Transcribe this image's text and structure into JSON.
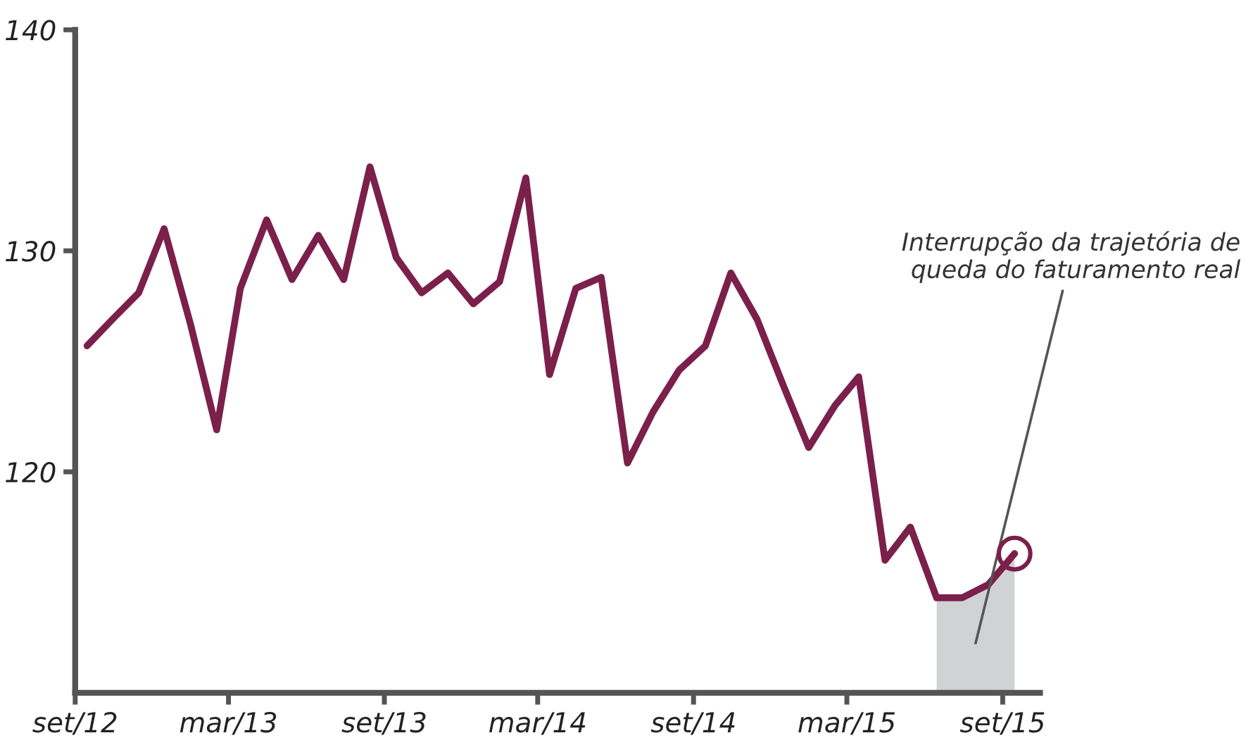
{
  "chart_data": {
    "type": "line",
    "x": [
      "2012-09-15",
      "2012-10-15",
      "2012-11-15",
      "2012-12-15",
      "2013-01-15",
      "2013-02-15",
      "2013-03-15",
      "2013-04-15",
      "2013-05-15",
      "2013-06-15",
      "2013-07-15",
      "2013-08-15",
      "2013-09-15",
      "2013-10-15",
      "2013-11-15",
      "2013-12-15",
      "2014-01-15",
      "2014-02-15",
      "2014-03-15",
      "2014-04-15",
      "2014-05-15",
      "2014-06-15",
      "2014-07-15",
      "2014-08-15",
      "2014-09-15",
      "2014-10-15",
      "2014-11-15",
      "2014-12-15",
      "2015-01-15",
      "2015-02-15",
      "2015-03-15",
      "2015-04-15",
      "2015-05-15",
      "2015-06-15",
      "2015-07-15",
      "2015-08-15",
      "2015-09-15"
    ],
    "series": [
      {
        "type": "area",
        "color": "#d1d2d4",
        "x": [
          "2015-06-15",
          "2015-07-15",
          "2015-08-15",
          "2015-09-15"
        ],
        "values": [
          114.3,
          114.3,
          114.9,
          116.3
        ]
      },
      {
        "color": "#7b1f4b",
        "values": [
          125.7,
          126.9,
          128.1,
          131.0,
          126.7,
          121.9,
          128.3,
          131.4,
          128.7,
          130.7,
          128.7,
          133.8,
          129.7,
          128.1,
          129.0,
          127.6,
          128.6,
          133.3,
          124.4,
          128.3,
          128.8,
          120.4,
          122.7,
          124.6,
          125.7,
          129.0,
          126.9,
          124.0,
          121.1,
          123.0,
          124.3,
          116.0,
          117.5,
          114.3,
          114.3,
          114.9,
          116.3
        ]
      },
      {
        "type": "scatter",
        "color": "#7b1f4b",
        "marker": "circle",
        "x": [
          "2015-09-15"
        ],
        "values": [
          116.3
        ]
      }
    ],
    "ylim": [
      110,
      140
    ],
    "yticks": [
      120,
      130,
      140
    ],
    "xlim": [
      "2012-09-01",
      "2015-10-15"
    ],
    "xticks": [
      {
        "value": "2012-09-01",
        "label": "set/12"
      },
      {
        "value": "2013-03-01",
        "label": "mar/13"
      },
      {
        "value": "2013-09-01",
        "label": "set/13"
      },
      {
        "value": "2014-03-01",
        "label": "mar/14"
      },
      {
        "value": "2014-09-01",
        "label": "set/14"
      },
      {
        "value": "2015-03-01",
        "label": "mar/15"
      },
      {
        "value": "2015-09-01",
        "label": "set/15"
      }
    ],
    "grid": false,
    "legend": false,
    "annotations": [
      "Interrupção da trajetória de\nqueda do faturamento real"
    ]
  }
}
